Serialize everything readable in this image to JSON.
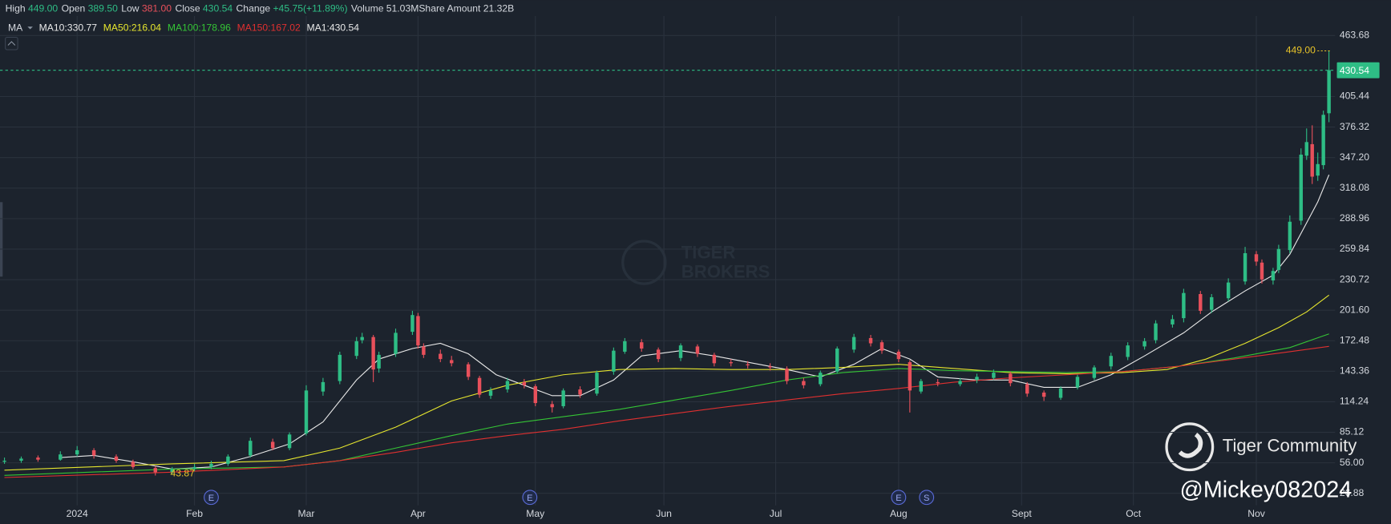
{
  "chart_data": {
    "type": "candlestick",
    "header": [
      {
        "label": "High",
        "value": "449.00",
        "color": "#2ebd85"
      },
      {
        "label": "Open",
        "value": "389.50",
        "color": "#2ebd85"
      },
      {
        "label": "Low",
        "value": "381.00",
        "color": "#e8505b"
      },
      {
        "label": "Close",
        "value": "430.54",
        "color": "#2ebd85"
      },
      {
        "label": "Change",
        "value": "+45.75(+11.89%)",
        "color": "#2ebd85"
      },
      {
        "label": "Volume",
        "value": "51.03M",
        "color": "#d4d8de"
      },
      {
        "label": "Share Amount",
        "value": "21.32B",
        "color": "#d4d8de"
      }
    ],
    "indicator": "MA",
    "series": [
      {
        "legend": "MA10:330.77",
        "color": "#e8e8e8",
        "x": [
          10,
          16,
          23,
          30,
          37,
          44,
          51,
          57,
          63,
          67,
          73,
          78,
          83,
          88,
          93,
          98,
          103,
          109,
          114,
          121,
          127,
          133,
          140,
          146,
          152,
          157,
          162,
          167,
          174,
          180,
          186,
          192,
          198,
          204,
          211,
          216,
          222,
          227,
          230,
          233,
          235,
          237
        ],
        "values": [
          61,
          63,
          57,
          50,
          52,
          62,
          74,
          95,
          135,
          155,
          165,
          170,
          160,
          140,
          130,
          120,
          120,
          135,
          158,
          163,
          158,
          152,
          145,
          138,
          150,
          165,
          155,
          138,
          135,
          135,
          128,
          128,
          140,
          158,
          180,
          200,
          220,
          235,
          255,
          285,
          305,
          330.77
        ]
      },
      {
        "legend": "MA50:216.04",
        "color": "#e6e62e",
        "x": [
          0,
          30,
          50,
          60,
          70,
          80,
          90,
          100,
          110,
          120,
          130,
          140,
          150,
          160,
          170,
          180,
          190,
          200,
          208,
          215,
          222,
          228,
          233,
          237
        ],
        "values": [
          49,
          55,
          58,
          70,
          90,
          115,
          130,
          140,
          145,
          146,
          145,
          145,
          147,
          150,
          146,
          142,
          141,
          142,
          145,
          155,
          170,
          185,
          200,
          216.04
        ]
      },
      {
        "legend": "MA100:178.96",
        "color": "#35c435",
        "x": [
          0,
          30,
          50,
          60,
          70,
          80,
          90,
          100,
          110,
          120,
          130,
          140,
          150,
          160,
          170,
          180,
          190,
          200,
          210,
          220,
          230,
          237
        ],
        "values": [
          44,
          50,
          52,
          58,
          70,
          82,
          93,
          100,
          107,
          116,
          125,
          135,
          142,
          146,
          144,
          143,
          142,
          143,
          148,
          156,
          166,
          178.96
        ]
      },
      {
        "legend": "MA150:167.02",
        "color": "#e03030",
        "x": [
          0,
          30,
          50,
          60,
          70,
          80,
          90,
          100,
          110,
          120,
          130,
          140,
          150,
          160,
          170,
          180,
          190,
          200,
          210,
          220,
          230,
          237
        ],
        "values": [
          42,
          47,
          52,
          58,
          66,
          75,
          82,
          88,
          96,
          103,
          110,
          116,
          122,
          127,
          133,
          137,
          140,
          143,
          148,
          155,
          162,
          167.02
        ]
      },
      {
        "legend": "MA1:430.54",
        "color": "#e8e8e8"
      }
    ],
    "x": [
      0,
      3,
      6,
      10,
      13,
      16,
      20,
      23,
      27,
      30,
      34,
      37,
      40,
      44,
      48,
      51,
      54,
      57,
      60,
      63,
      64,
      66,
      67,
      70,
      73,
      74,
      75,
      78,
      80,
      83,
      85,
      87,
      90,
      93,
      95,
      98,
      100,
      103,
      106,
      109,
      111,
      114,
      117,
      121,
      124,
      127,
      130,
      133,
      137,
      140,
      143,
      146,
      149,
      152,
      155,
      157,
      160,
      162,
      164,
      167,
      171,
      174,
      177,
      180,
      183,
      186,
      189,
      192,
      195,
      198,
      201,
      204,
      206,
      209,
      211,
      214,
      216,
      219,
      222,
      224,
      225,
      227,
      228,
      230,
      232,
      233,
      234,
      235,
      236,
      237
    ],
    "open": [
      57,
      58,
      61,
      59,
      64,
      68,
      62,
      57,
      51,
      47,
      50,
      52,
      55,
      63,
      76,
      70,
      84,
      124,
      134,
      158,
      173,
      176,
      146,
      160,
      181,
      196,
      167,
      160,
      154,
      150,
      137,
      120,
      126,
      133,
      129,
      112,
      110,
      126,
      122,
      143,
      162,
      171,
      164,
      156,
      167,
      159,
      152,
      150,
      148,
      146,
      134,
      131,
      143,
      164,
      175,
      171,
      162,
      152,
      124,
      133,
      131,
      135,
      137,
      141,
      131,
      123,
      118,
      128,
      137,
      148,
      157,
      167,
      173,
      188,
      194,
      217,
      202,
      213,
      229,
      255,
      247,
      230,
      240,
      259,
      287,
      349,
      360,
      330,
      340,
      389.5
    ],
    "high": [
      61,
      62,
      63,
      67,
      72,
      70,
      64,
      59,
      53,
      52,
      55,
      58,
      64,
      80,
      79,
      85,
      130,
      137,
      162,
      176,
      180,
      178,
      162,
      184,
      201,
      199,
      170,
      164,
      158,
      152,
      139,
      128,
      137,
      136,
      131,
      115,
      127,
      129,
      144,
      166,
      175,
      174,
      166,
      170,
      169,
      161,
      155,
      153,
      151,
      148,
      137,
      144,
      167,
      179,
      178,
      173,
      164,
      154,
      136,
      136,
      137,
      141,
      145,
      143,
      133,
      125,
      129,
      140,
      149,
      161,
      171,
      175,
      192,
      197,
      222,
      220,
      217,
      232,
      262,
      258,
      250,
      242,
      264,
      292,
      356,
      375,
      378,
      352,
      392,
      449
    ],
    "low": [
      55,
      56,
      57,
      58,
      62,
      60,
      56,
      50,
      43.87,
      45,
      48,
      50,
      53,
      61,
      68,
      68,
      82,
      120,
      131,
      155,
      170,
      133,
      142,
      157,
      178,
      165,
      156,
      152,
      148,
      135,
      118,
      117,
      123,
      127,
      110,
      104,
      108,
      118,
      120,
      140,
      160,
      162,
      152,
      153,
      157,
      148,
      148,
      146,
      144,
      131,
      127,
      129,
      141,
      161,
      167,
      160,
      152,
      104,
      122,
      129,
      129,
      132,
      135,
      129,
      119,
      115,
      116,
      126,
      135,
      145,
      154,
      164,
      170,
      185,
      190,
      198,
      199,
      210,
      226,
      244,
      227,
      226,
      237,
      256,
      283,
      345,
      322,
      325,
      336,
      381
    ],
    "close": [
      58,
      60,
      59,
      64,
      68,
      63,
      58,
      52,
      47,
      50,
      52,
      55,
      62,
      77,
      70,
      83,
      125,
      133,
      159,
      172,
      176,
      145,
      159,
      180,
      197,
      168,
      159,
      155,
      151,
      138,
      121,
      125,
      134,
      130,
      113,
      109,
      125,
      121,
      142,
      163,
      172,
      165,
      155,
      168,
      160,
      151,
      151,
      149,
      147,
      134,
      130,
      142,
      165,
      176,
      170,
      163,
      155,
      125,
      134,
      132,
      134,
      138,
      142,
      132,
      122,
      119,
      127,
      138,
      147,
      158,
      168,
      172,
      189,
      193,
      218,
      201,
      214,
      228,
      256,
      248,
      231,
      239,
      260,
      286,
      350,
      362,
      329,
      341,
      388,
      430.54
    ],
    "up_color": "#2ebd85",
    "down_color": "#e8505b",
    "xlim": [
      -0.8,
      238.1
    ],
    "xticks": [
      {
        "value": 13,
        "label": "2024"
      },
      {
        "value": 34,
        "label": "Feb"
      },
      {
        "value": 54,
        "label": "Mar"
      },
      {
        "value": 74,
        "label": "Apr"
      },
      {
        "value": 95,
        "label": "May"
      },
      {
        "value": 118,
        "label": "Jun"
      },
      {
        "value": 138,
        "label": "Jul"
      },
      {
        "value": 160,
        "label": "Aug"
      },
      {
        "value": 182,
        "label": "Sept"
      },
      {
        "value": 202,
        "label": "Oct"
      },
      {
        "value": 224,
        "label": "Nov"
      }
    ],
    "ylim": [
      15.4,
      482.3
    ],
    "yticks": [
      463.68,
      405.44,
      376.32,
      {
        "value": 347.2,
        "label": "347.20"
      },
      318.08,
      288.96,
      259.84,
      230.72,
      {
        "value": 201.6,
        "label": "201.60"
      },
      172.48,
      143.36,
      114.24,
      85.12,
      {
        "value": 56,
        "label": "56.00"
      },
      26.88
    ],
    "grid": true,
    "last_price": 430.54,
    "high_marker": {
      "value": 449,
      "label": "449.00"
    },
    "low_marker": 43.87,
    "events": [
      {
        "x": 37,
        "label": "E"
      },
      {
        "x": 94,
        "label": "E"
      },
      {
        "x": 160,
        "label": "E"
      },
      {
        "x": 165,
        "label": "S"
      }
    ],
    "watermarks": [
      "TIGER",
      "BROKERS",
      "Tiger Community",
      "@Mickey082024"
    ]
  }
}
